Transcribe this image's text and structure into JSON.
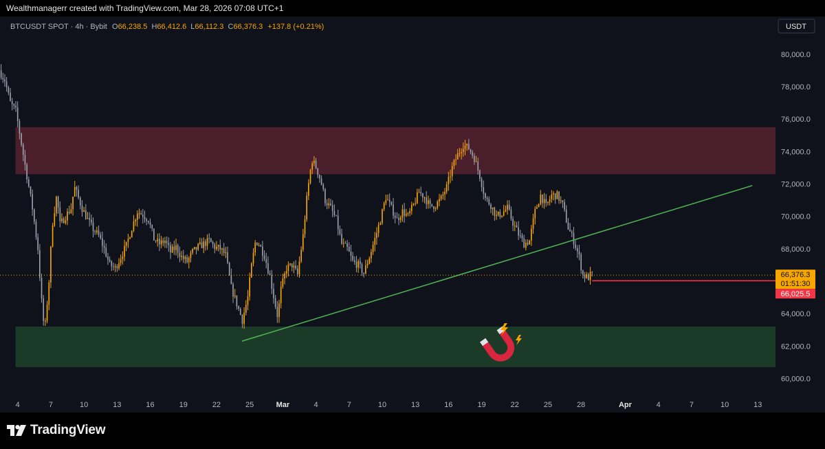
{
  "header": {
    "attribution": "Wealthmanagerr created with TradingView.com, Mar 28, 2026 07:08 UTC+1"
  },
  "footer": {
    "brand": "TradingView"
  },
  "chart_data": {
    "type": "candlestick",
    "symbol_line": {
      "symbol": "BTCUSDT SPOT · 4h · Bybit",
      "o_label": "O",
      "o": "66,238.5",
      "h_label": "H",
      "h": "66,412.6",
      "l_label": "L",
      "l": "66,112.3",
      "c_label": "C",
      "c": "66,376.3",
      "change": "+137.8 (+0.21%)"
    },
    "currency": "USDT",
    "ylim": [
      59000,
      80800
    ],
    "y_ticks": [
      {
        "v": 80000,
        "label": "80,000.0"
      },
      {
        "v": 78000,
        "label": "78,000.0"
      },
      {
        "v": 76000,
        "label": "76,000.0"
      },
      {
        "v": 74000,
        "label": "74,000.0"
      },
      {
        "v": 72000,
        "label": "72,000.0"
      },
      {
        "v": 70000,
        "label": "70,000.0"
      },
      {
        "v": 68000,
        "label": "68,000.0"
      },
      {
        "v": 66000,
        "label": "66,000.0"
      },
      {
        "v": 64000,
        "label": "64,000.0"
      },
      {
        "v": 62000,
        "label": "62,000.0"
      },
      {
        "v": 60000,
        "label": "60,000.0"
      }
    ],
    "x_ticks": [
      {
        "d": 4,
        "label": "4"
      },
      {
        "d": 7,
        "label": "7"
      },
      {
        "d": 10,
        "label": "10"
      },
      {
        "d": 13,
        "label": "13"
      },
      {
        "d": 16,
        "label": "16"
      },
      {
        "d": 19,
        "label": "19"
      },
      {
        "d": 22,
        "label": "22"
      },
      {
        "d": 25,
        "label": "25"
      },
      {
        "d": 28,
        "label": "Mar"
      },
      {
        "d": 31,
        "label": "4"
      },
      {
        "d": 34,
        "label": "7"
      },
      {
        "d": 37,
        "label": "10"
      },
      {
        "d": 40,
        "label": "13"
      },
      {
        "d": 43,
        "label": "16"
      },
      {
        "d": 46,
        "label": "19"
      },
      {
        "d": 49,
        "label": "22"
      },
      {
        "d": 52,
        "label": "25"
      },
      {
        "d": 55,
        "label": "28"
      },
      {
        "d": 59,
        "label": "Apr"
      },
      {
        "d": 62,
        "label": "4"
      },
      {
        "d": 65,
        "label": "7"
      },
      {
        "d": 68,
        "label": "10"
      },
      {
        "d": 71,
        "label": "13"
      }
    ],
    "xlim": [
      2.4,
      72.6
    ],
    "path": [
      [
        2.5,
        79000
      ],
      [
        3.0,
        78400
      ],
      [
        3.5,
        77000
      ],
      [
        4.0,
        76500
      ],
      [
        4.5,
        74500
      ],
      [
        5.0,
        72500
      ],
      [
        5.5,
        70500
      ],
      [
        6.0,
        68000
      ],
      [
        6.3,
        65000
      ],
      [
        6.6,
        62800
      ],
      [
        7.0,
        66000
      ],
      [
        7.3,
        69500
      ],
      [
        7.7,
        71300
      ],
      [
        8.0,
        69500
      ],
      [
        8.5,
        70000
      ],
      [
        9.0,
        70500
      ],
      [
        9.3,
        71800
      ],
      [
        10.0,
        70500
      ],
      [
        10.5,
        69800
      ],
      [
        11.0,
        69200
      ],
      [
        11.5,
        68800
      ],
      [
        12.0,
        68000
      ],
      [
        12.5,
        67000
      ],
      [
        13.0,
        66800
      ],
      [
        13.5,
        67500
      ],
      [
        14.0,
        68200
      ],
      [
        14.5,
        69300
      ],
      [
        15.0,
        70300
      ],
      [
        15.5,
        70100
      ],
      [
        16.0,
        69800
      ],
      [
        16.5,
        68600
      ],
      [
        17.0,
        68300
      ],
      [
        17.5,
        68500
      ],
      [
        18.0,
        67800
      ],
      [
        18.5,
        68100
      ],
      [
        19.0,
        67500
      ],
      [
        19.5,
        67200
      ],
      [
        20.0,
        67800
      ],
      [
        20.5,
        68100
      ],
      [
        21.0,
        68300
      ],
      [
        21.5,
        68500
      ],
      [
        22.0,
        68100
      ],
      [
        22.5,
        68000
      ],
      [
        23.0,
        67600
      ],
      [
        23.5,
        65600
      ],
      [
        24.0,
        64600
      ],
      [
        24.5,
        63600
      ],
      [
        25.0,
        65000
      ],
      [
        25.3,
        66800
      ],
      [
        25.7,
        68500
      ],
      [
        26.0,
        68300
      ],
      [
        26.5,
        67600
      ],
      [
        27.0,
        66300
      ],
      [
        27.3,
        65200
      ],
      [
        27.7,
        63800
      ],
      [
        28.0,
        65500
      ],
      [
        28.5,
        66800
      ],
      [
        29.0,
        67000
      ],
      [
        29.5,
        66400
      ],
      [
        30.0,
        68800
      ],
      [
        30.4,
        71500
      ],
      [
        30.8,
        73500
      ],
      [
        31.2,
        73000
      ],
      [
        31.6,
        72200
      ],
      [
        32.0,
        71000
      ],
      [
        32.5,
        70500
      ],
      [
        33.0,
        69800
      ],
      [
        33.5,
        68300
      ],
      [
        34.0,
        68000
      ],
      [
        34.5,
        67200
      ],
      [
        35.0,
        67000
      ],
      [
        35.5,
        66500
      ],
      [
        36.0,
        67500
      ],
      [
        36.5,
        68600
      ],
      [
        37.0,
        69800
      ],
      [
        37.5,
        71200
      ],
      [
        38.0,
        70500
      ],
      [
        38.5,
        69800
      ],
      [
        39.0,
        70300
      ],
      [
        39.5,
        70000
      ],
      [
        40.0,
        70700
      ],
      [
        40.5,
        71500
      ],
      [
        41.0,
        71200
      ],
      [
        41.5,
        70600
      ],
      [
        42.0,
        70700
      ],
      [
        42.5,
        71100
      ],
      [
        43.0,
        71800
      ],
      [
        43.5,
        73000
      ],
      [
        44.0,
        73800
      ],
      [
        44.5,
        74400
      ],
      [
        45.0,
        74200
      ],
      [
        45.5,
        73600
      ],
      [
        46.0,
        72500
      ],
      [
        46.5,
        71100
      ],
      [
        47.0,
        70700
      ],
      [
        47.5,
        70000
      ],
      [
        48.0,
        70200
      ],
      [
        48.5,
        70500
      ],
      [
        49.0,
        69600
      ],
      [
        49.5,
        68900
      ],
      [
        50.0,
        68300
      ],
      [
        50.5,
        68500
      ],
      [
        51.0,
        70300
      ],
      [
        51.5,
        71300
      ],
      [
        52.0,
        70600
      ],
      [
        52.5,
        71300
      ],
      [
        53.0,
        71300
      ],
      [
        53.5,
        70700
      ],
      [
        54.0,
        69300
      ],
      [
        54.5,
        68500
      ],
      [
        55.0,
        67500
      ],
      [
        55.3,
        66400
      ],
      [
        55.8,
        66200
      ],
      [
        56.0,
        66376
      ]
    ],
    "ranges": [
      {
        "name": "resistance",
        "from": 72600,
        "to": 75500,
        "x0": 3.8,
        "x1": 72.6,
        "color": "#4a1f2b"
      },
      {
        "name": "support",
        "from": 60700,
        "to": 63200,
        "x0": 3.8,
        "x1": 72.6,
        "color": "#1b3a27"
      }
    ],
    "trendline": {
      "x0": 24.3,
      "y0": 62300,
      "x1": 70.5,
      "y1": 71900,
      "color": "#4caf50"
    },
    "last_price": {
      "value": 66376.3,
      "label": "66,376.3",
      "countdown": "01:51:30",
      "color": "#f7a600"
    },
    "level_line": {
      "value": 66025.5,
      "label": "66,025.5",
      "x0": 56.0,
      "color": "#f23645"
    },
    "magnet_icon": "magnet-icon",
    "colors": {
      "up": "#f7a600",
      "down": "#9aa0ad",
      "bg": "#0f121a",
      "text": "#b2b5be"
    }
  }
}
